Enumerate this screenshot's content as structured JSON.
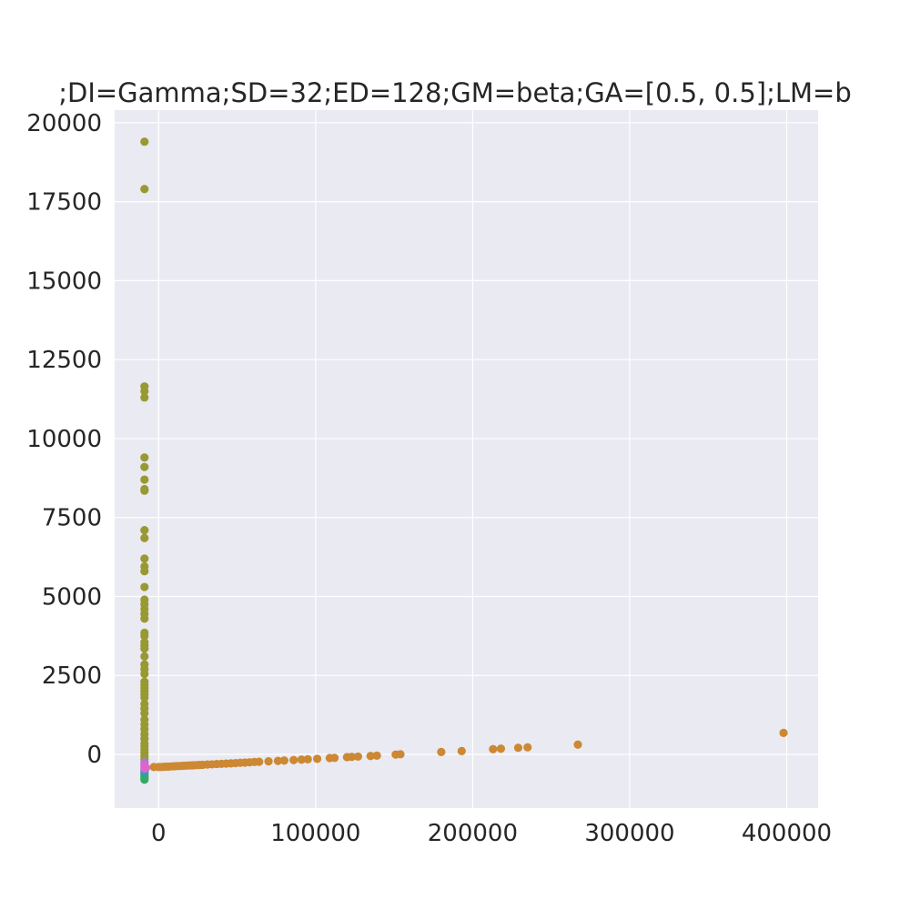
{
  "chart_data": {
    "type": "scatter",
    "title": ";DI=Gamma;SD=32;ED=128;GM=beta;GA=[0.5, 0.5];LM=b",
    "xlabel": "",
    "ylabel": "",
    "xlim": [
      -28000,
      420000
    ],
    "ylim": [
      -1700,
      20400
    ],
    "x_ticks": [
      0,
      100000,
      200000,
      300000,
      400000
    ],
    "x_tick_labels": [
      "0",
      "100000",
      "200000",
      "300000",
      "400000"
    ],
    "y_ticks": [
      0,
      2500,
      5000,
      7500,
      10000,
      12500,
      15000,
      17500,
      20000
    ],
    "y_tick_labels": [
      "0",
      "2500",
      "5000",
      "7500",
      "10000",
      "12500",
      "15000",
      "17500",
      "20000"
    ],
    "grid": true,
    "legend": "none",
    "colors": {
      "background": "#eaeaf2",
      "grid": "#ffffff",
      "text": "#262626"
    },
    "series": [
      {
        "color": "#999933",
        "points": [
          [
            -9000,
            19400
          ],
          [
            -9000,
            17900
          ],
          [
            -9000,
            11650
          ],
          [
            -9000,
            11500
          ],
          [
            -9000,
            11300
          ],
          [
            -9000,
            9400
          ],
          [
            -9000,
            9100
          ],
          [
            -9000,
            8700
          ],
          [
            -9000,
            8400
          ],
          [
            -9000,
            8350
          ],
          [
            -9000,
            7100
          ],
          [
            -9000,
            6850
          ],
          [
            -9000,
            6200
          ],
          [
            -9000,
            5950
          ],
          [
            -9000,
            5800
          ],
          [
            -9000,
            5300
          ],
          [
            -9000,
            4900
          ],
          [
            -9000,
            4750
          ],
          [
            -9000,
            4600
          ],
          [
            -9000,
            4450
          ],
          [
            -9000,
            4300
          ],
          [
            -9000,
            3850
          ],
          [
            -9000,
            3750
          ],
          [
            -9000,
            3550
          ],
          [
            -9000,
            3450
          ],
          [
            -9000,
            3350
          ],
          [
            -9000,
            3100
          ],
          [
            -9000,
            2850
          ],
          [
            -9000,
            2700
          ],
          [
            -9000,
            2550
          ],
          [
            -9000,
            2300
          ],
          [
            -9000,
            2200
          ],
          [
            -9000,
            2100
          ],
          [
            -9000,
            2000
          ],
          [
            -9000,
            1900
          ],
          [
            -9000,
            1800
          ],
          [
            -9000,
            1600
          ],
          [
            -9000,
            1450
          ],
          [
            -9000,
            1300
          ],
          [
            -9000,
            1100
          ],
          [
            -9000,
            950
          ],
          [
            -9000,
            800
          ],
          [
            -9000,
            650
          ],
          [
            -9000,
            500
          ],
          [
            -9000,
            350
          ],
          [
            -9000,
            250
          ],
          [
            -9000,
            150
          ],
          [
            -9000,
            50
          ],
          [
            -9000,
            -50
          ],
          [
            -9000,
            -150
          ]
        ]
      },
      {
        "color": "#cc8833",
        "points": [
          [
            -3000,
            -400
          ],
          [
            0,
            -400
          ],
          [
            2000,
            -400
          ],
          [
            4000,
            -390
          ],
          [
            6000,
            -390
          ],
          [
            8000,
            -380
          ],
          [
            10000,
            -375
          ],
          [
            12000,
            -370
          ],
          [
            14000,
            -365
          ],
          [
            16000,
            -360
          ],
          [
            18000,
            -355
          ],
          [
            20000,
            -350
          ],
          [
            22000,
            -345
          ],
          [
            24000,
            -340
          ],
          [
            26000,
            -335
          ],
          [
            28000,
            -330
          ],
          [
            31000,
            -320
          ],
          [
            34000,
            -315
          ],
          [
            37000,
            -305
          ],
          [
            40000,
            -300
          ],
          [
            43000,
            -290
          ],
          [
            46000,
            -285
          ],
          [
            49000,
            -275
          ],
          [
            52000,
            -265
          ],
          [
            55000,
            -260
          ],
          [
            58000,
            -250
          ],
          [
            61000,
            -240
          ],
          [
            64000,
            -235
          ],
          [
            70000,
            -220
          ],
          [
            76000,
            -205
          ],
          [
            80000,
            -195
          ],
          [
            86000,
            -180
          ],
          [
            91000,
            -165
          ],
          [
            95000,
            -155
          ],
          [
            101000,
            -140
          ],
          [
            109000,
            -115
          ],
          [
            112000,
            -110
          ],
          [
            120000,
            -85
          ],
          [
            123000,
            -80
          ],
          [
            127000,
            -70
          ],
          [
            135000,
            -50
          ],
          [
            139000,
            -40
          ],
          [
            151000,
            -5
          ],
          [
            154000,
            5
          ],
          [
            180000,
            75
          ],
          [
            193000,
            105
          ],
          [
            213000,
            165
          ],
          [
            218000,
            180
          ],
          [
            229000,
            210
          ],
          [
            235000,
            225
          ],
          [
            267000,
            310
          ],
          [
            398000,
            680
          ]
        ]
      },
      {
        "color": "#33aa66",
        "points": [
          [
            -9000,
            -650
          ],
          [
            -9000,
            -700
          ],
          [
            -9000,
            -750
          ],
          [
            -9000,
            -800
          ],
          [
            -9000,
            -600
          ]
        ]
      },
      {
        "color": "#3399bb",
        "points": [
          [
            -9000,
            -500
          ],
          [
            -9000,
            -550
          ]
        ]
      },
      {
        "color": "#aa77dd",
        "points": [
          [
            -9000,
            -250
          ],
          [
            -9000,
            -300
          ]
        ]
      },
      {
        "color": "#dd66cc",
        "points": [
          [
            -9000,
            -350
          ],
          [
            -9000,
            -400
          ],
          [
            -9000,
            -450
          ],
          [
            -8000,
            -420
          ]
        ]
      }
    ]
  }
}
